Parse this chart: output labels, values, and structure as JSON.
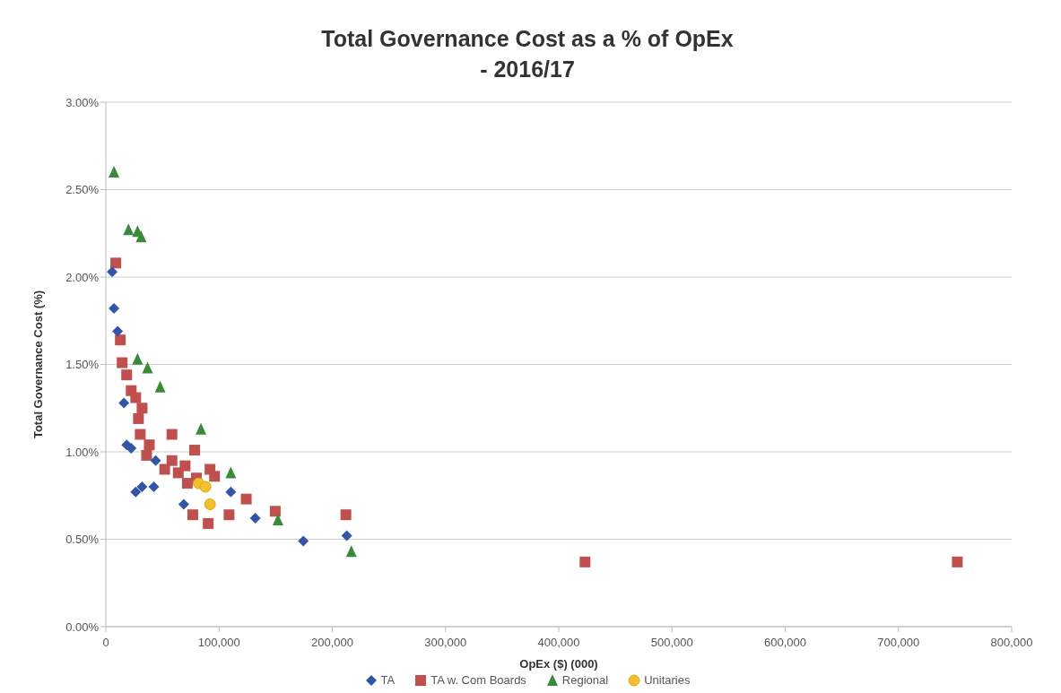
{
  "chart_data": {
    "type": "scatter",
    "title": "Total Governance Cost as a % of OpEx\n- 2016/17",
    "xlabel": "OpEx ($) (000)",
    "ylabel": "Total Governance Cost (%)",
    "xlim": [
      0,
      800000
    ],
    "xticks": [
      0,
      {
        "value": 100000,
        "label": "100,000"
      },
      {
        "value": 200000,
        "label": "200,000"
      },
      {
        "value": 300000,
        "label": "300,000"
      },
      {
        "value": 400000,
        "label": "400,000"
      },
      {
        "value": 500000,
        "label": "500,000"
      },
      {
        "value": 600000,
        "label": "600,000"
      },
      {
        "value": 700000,
        "label": "700,000"
      },
      {
        "value": 800000,
        "label": "800,000"
      }
    ],
    "ylim": [
      0,
      3
    ],
    "yticks": [
      {
        "value": 0,
        "label": "0.00%"
      },
      {
        "value": 0.5,
        "label": "0.50%"
      },
      {
        "value": 1,
        "label": "1.00%"
      },
      {
        "value": 1.5,
        "label": "1.50%"
      },
      {
        "value": 2,
        "label": "2.00%"
      },
      {
        "value": 2.5,
        "label": "2.50%"
      },
      {
        "value": 3,
        "label": "3.00%"
      }
    ],
    "grid": "y",
    "legend": "bottom",
    "series": [
      {
        "name": "TA",
        "color": "#3355a6",
        "marker": "diamond",
        "x": [
          5600,
          7200,
          10400,
          16000,
          18400,
          22400,
          26400,
          32000,
          42400,
          44000,
          68800,
          110400,
          132000,
          174400,
          212800
        ],
        "values": [
          2.03,
          1.82,
          1.69,
          1.28,
          1.04,
          1.02,
          0.77,
          0.8,
          0.8,
          0.95,
          0.7,
          0.77,
          0.62,
          0.49,
          0.52
        ]
      },
      {
        "name": "TA w. Com Boards",
        "color": "#c0504d",
        "marker": "square",
        "x": [
          8800,
          12800,
          14400,
          18400,
          22400,
          26400,
          28800,
          30400,
          32000,
          36000,
          38400,
          42400,
          48000,
          52000,
          58400,
          58400,
          64000,
          70000,
          72000,
          78400,
          80000,
          76800,
          90400,
          92000,
          96000,
          108800,
          124000,
          149600,
          212000,
          423200,
          752000
        ],
        "values": [
          2.08,
          1.64,
          1.51,
          1.44,
          1.35,
          1.31,
          1.19,
          1.1,
          1.25,
          0.98,
          1.04,
          null,
          null,
          0.9,
          0.95,
          1.1,
          0.88,
          0.92,
          0.82,
          1.01,
          0.85,
          0.64,
          0.59,
          0.9,
          0.86,
          0.64,
          0.73,
          0.66,
          0.64,
          0.37,
          0.37
        ]
      },
      {
        "name": "Regional",
        "color": "#3a8a3a",
        "marker": "triangle",
        "x": [
          7200,
          20000,
          28000,
          31200,
          28000,
          36800,
          48000,
          84000,
          110400,
          152000,
          216800
        ],
        "values": [
          2.6,
          2.27,
          2.26,
          2.23,
          1.53,
          1.48,
          1.37,
          1.13,
          0.88,
          0.61,
          0.43
        ]
      },
      {
        "name": "Unitaries",
        "color": "#f0c030",
        "marker": "circle",
        "x": [
          82000,
          88000,
          92000
        ],
        "values": [
          0.82,
          0.8,
          0.7
        ]
      }
    ]
  }
}
